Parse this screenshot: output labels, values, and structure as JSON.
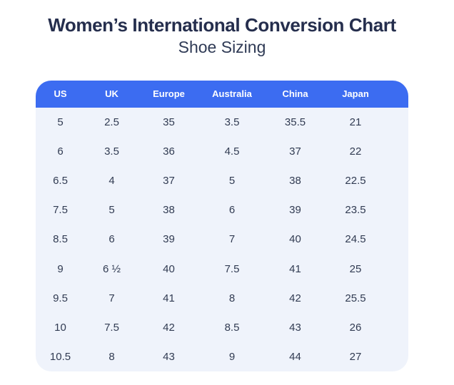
{
  "page": {
    "title": "Women’s International Conversion Chart",
    "subtitle": "Shoe Sizing"
  },
  "chart_data": {
    "type": "table",
    "title": "Women’s International Conversion Chart",
    "subtitle": "Shoe Sizing",
    "columns": [
      "US",
      "UK",
      "Europe",
      "Australia",
      "China",
      "Japan"
    ],
    "rows": [
      [
        "5",
        "2.5",
        "35",
        "3.5",
        "35.5",
        "21"
      ],
      [
        "6",
        "3.5",
        "36",
        "4.5",
        "37",
        "22"
      ],
      [
        "6.5",
        "4",
        "37",
        "5",
        "38",
        "22.5"
      ],
      [
        "7.5",
        "5",
        "38",
        "6",
        "39",
        "23.5"
      ],
      [
        "8.5",
        "6",
        "39",
        "7",
        "40",
        "24.5"
      ],
      [
        "9",
        "6 ½",
        "40",
        "7.5",
        "41",
        "25"
      ],
      [
        "9.5",
        "7",
        "41",
        "8",
        "42",
        "25.5"
      ],
      [
        "10",
        "7.5",
        "42",
        "8.5",
        "43",
        "26"
      ],
      [
        "10.5",
        "8",
        "43",
        "9",
        "44",
        "27"
      ]
    ],
    "layout": {
      "legend": "none",
      "grid": false,
      "header_position": "top",
      "corner_radius_px": 22
    }
  },
  "colors": {
    "header_bg": "#3C6CF1",
    "body_bg": "#EFF3FB",
    "title_text": "#252E4D",
    "subtitle_text": "#2F3A55",
    "body_text": "#313B52",
    "header_text": "#FFFFFF",
    "page_bg": "#FFFFFF"
  }
}
